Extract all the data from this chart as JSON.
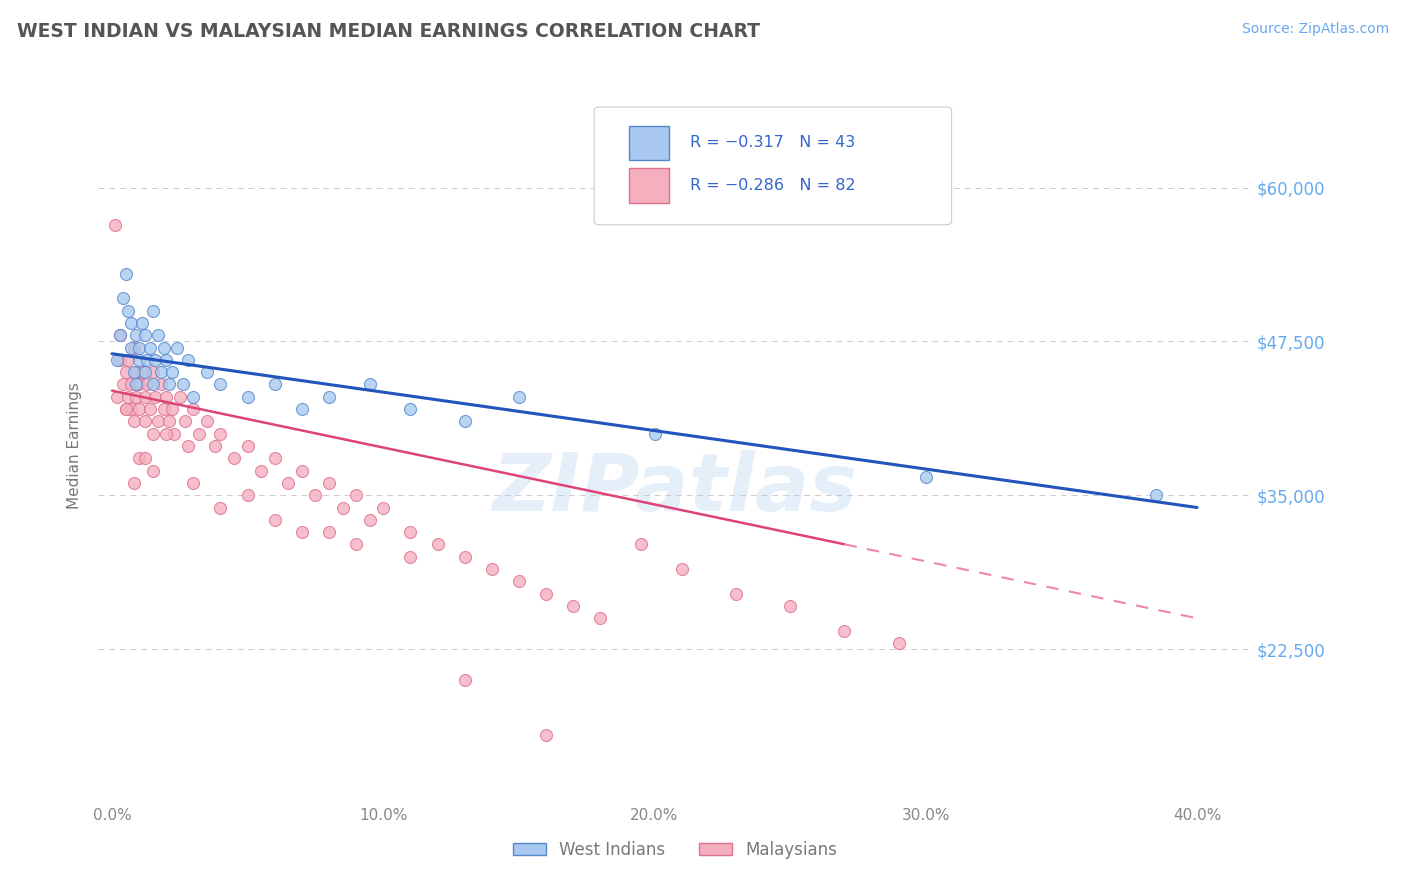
{
  "title": "WEST INDIAN VS MALAYSIAN MEDIAN EARNINGS CORRELATION CHART",
  "source_text": "Source: ZipAtlas.com",
  "ylabel": "Median Earnings",
  "xlim": [
    -0.005,
    0.42
  ],
  "ylim": [
    10000,
    68000
  ],
  "yticks": [
    22500,
    35000,
    47500,
    60000
  ],
  "ytick_labels": [
    "$22,500",
    "$35,000",
    "$47,500",
    "$60,000"
  ],
  "xticks": [
    0.0,
    0.1,
    0.2,
    0.3,
    0.4
  ],
  "xtick_labels": [
    "0.0%",
    "10.0%",
    "20.0%",
    "30.0%",
    "40.0%"
  ],
  "west_indian_color": "#a8c8f0",
  "west_indian_edge": "#5588cc",
  "malaysian_color": "#f5b0c0",
  "malaysian_edge": "#dd7090",
  "trend_blue_color": "#2255bb",
  "trend_pink_solid_color": "#dd4477",
  "trend_pink_dash_color": "#ee88aa",
  "background_color": "#ffffff",
  "grid_color": "#cccccc",
  "title_color": "#555555",
  "axis_label_color": "#777777",
  "ytick_color": "#66aaee",
  "xtick_color": "#888888",
  "legend_r1": "R = −0.317",
  "legend_n1": "N = 43",
  "legend_r2": "R = −0.286",
  "legend_n2": "N = 82",
  "legend_text_color": "#3366cc",
  "watermark": "ZIPatlas",
  "legend_bottom_label1": "West Indians",
  "legend_bottom_label2": "Malaysians",
  "trend_blue_x0": 0.0,
  "trend_blue_y0": 46500,
  "trend_blue_x1": 0.4,
  "trend_blue_y1": 34000,
  "trend_pink_x0": 0.0,
  "trend_pink_y0": 43500,
  "trend_pink_x1": 0.4,
  "trend_pink_y1": 25000,
  "trend_pink_solid_end": 0.27,
  "west_indian_x": [
    0.002,
    0.003,
    0.004,
    0.005,
    0.006,
    0.007,
    0.007,
    0.008,
    0.009,
    0.009,
    0.01,
    0.01,
    0.011,
    0.012,
    0.012,
    0.013,
    0.014,
    0.015,
    0.015,
    0.016,
    0.017,
    0.018,
    0.019,
    0.02,
    0.021,
    0.022,
    0.024,
    0.026,
    0.028,
    0.03,
    0.035,
    0.04,
    0.05,
    0.06,
    0.07,
    0.08,
    0.095,
    0.11,
    0.13,
    0.15,
    0.2,
    0.3,
    0.385
  ],
  "west_indian_y": [
    46000,
    48000,
    51000,
    53000,
    50000,
    47000,
    49000,
    45000,
    48000,
    44000,
    47000,
    46000,
    49000,
    48000,
    45000,
    46000,
    47000,
    50000,
    44000,
    46000,
    48000,
    45000,
    47000,
    46000,
    44000,
    45000,
    47000,
    44000,
    46000,
    43000,
    45000,
    44000,
    43000,
    44000,
    42000,
    43000,
    44000,
    42000,
    41000,
    43000,
    40000,
    36500,
    35000
  ],
  "malaysian_x": [
    0.001,
    0.002,
    0.003,
    0.003,
    0.004,
    0.005,
    0.005,
    0.006,
    0.006,
    0.007,
    0.007,
    0.008,
    0.008,
    0.009,
    0.009,
    0.01,
    0.01,
    0.011,
    0.012,
    0.012,
    0.013,
    0.014,
    0.015,
    0.015,
    0.016,
    0.017,
    0.018,
    0.019,
    0.02,
    0.021,
    0.022,
    0.023,
    0.025,
    0.027,
    0.028,
    0.03,
    0.032,
    0.035,
    0.038,
    0.04,
    0.045,
    0.05,
    0.055,
    0.06,
    0.065,
    0.07,
    0.075,
    0.08,
    0.085,
    0.09,
    0.095,
    0.1,
    0.11,
    0.12,
    0.13,
    0.14,
    0.15,
    0.16,
    0.17,
    0.18,
    0.195,
    0.21,
    0.23,
    0.25,
    0.27,
    0.29,
    0.01,
    0.02,
    0.005,
    0.015,
    0.008,
    0.012,
    0.04,
    0.06,
    0.09,
    0.03,
    0.07,
    0.11,
    0.05,
    0.08,
    0.13,
    0.16
  ],
  "malaysian_y": [
    57000,
    43000,
    46000,
    48000,
    44000,
    45000,
    42000,
    46000,
    43000,
    44000,
    42000,
    47000,
    41000,
    45000,
    43000,
    44000,
    42000,
    45000,
    43000,
    41000,
    44000,
    42000,
    45000,
    40000,
    43000,
    41000,
    44000,
    42000,
    43000,
    41000,
    42000,
    40000,
    43000,
    41000,
    39000,
    42000,
    40000,
    41000,
    39000,
    40000,
    38000,
    39000,
    37000,
    38000,
    36000,
    37000,
    35000,
    36000,
    34000,
    35000,
    33000,
    34000,
    32000,
    31000,
    30000,
    29000,
    28000,
    27000,
    26000,
    25000,
    31000,
    29000,
    27000,
    26000,
    24000,
    23000,
    38000,
    40000,
    42000,
    37000,
    36000,
    38000,
    34000,
    33000,
    31000,
    36000,
    32000,
    30000,
    35000,
    32000,
    20000,
    15500
  ]
}
